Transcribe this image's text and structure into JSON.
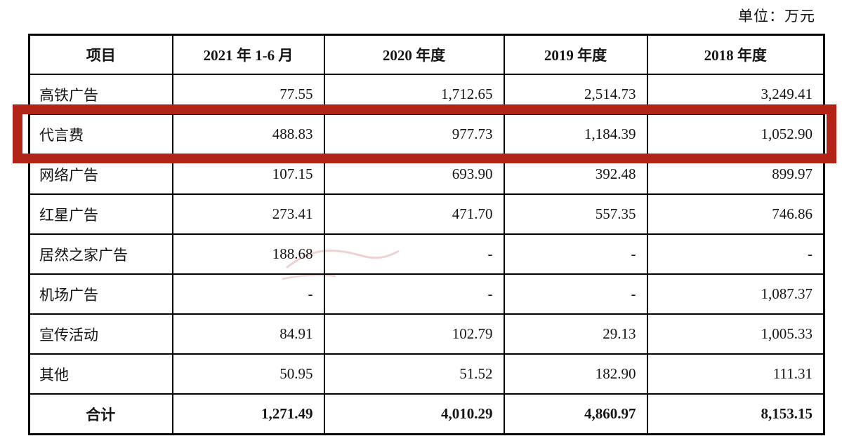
{
  "unit_label": "单位：万元",
  "highlight_color": "#b22418",
  "table": {
    "headers": [
      "项目",
      "2021 年 1-6 月",
      "2020 年度",
      "2019 年度",
      "2018 年度"
    ],
    "rows": [
      {
        "item": "高铁广告",
        "values": [
          "77.55",
          "1,712.65",
          "2,514.73",
          "3,249.41"
        ],
        "highlighted": false
      },
      {
        "item": "代言费",
        "values": [
          "488.83",
          "977.73",
          "1,184.39",
          "1,052.90"
        ],
        "highlighted": true
      },
      {
        "item": "网络广告",
        "values": [
          "107.15",
          "693.90",
          "392.48",
          "899.97"
        ],
        "highlighted": false
      },
      {
        "item": "红星广告",
        "values": [
          "273.41",
          "471.70",
          "557.35",
          "746.86"
        ],
        "highlighted": false
      },
      {
        "item": "居然之家广告",
        "values": [
          "188.68",
          "-",
          "-",
          "-"
        ],
        "highlighted": false
      },
      {
        "item": "机场广告",
        "values": [
          "-",
          "-",
          "-",
          "1,087.37"
        ],
        "highlighted": false
      },
      {
        "item": "宣传活动",
        "values": [
          "84.91",
          "102.79",
          "29.13",
          "1,005.33"
        ],
        "highlighted": false
      },
      {
        "item": "其他",
        "values": [
          "50.95",
          "51.52",
          "182.90",
          "111.31"
        ],
        "highlighted": false
      }
    ],
    "total": {
      "item": "合计",
      "values": [
        "1,271.49",
        "4,010.29",
        "4,860.97",
        "8,153.15"
      ]
    }
  }
}
